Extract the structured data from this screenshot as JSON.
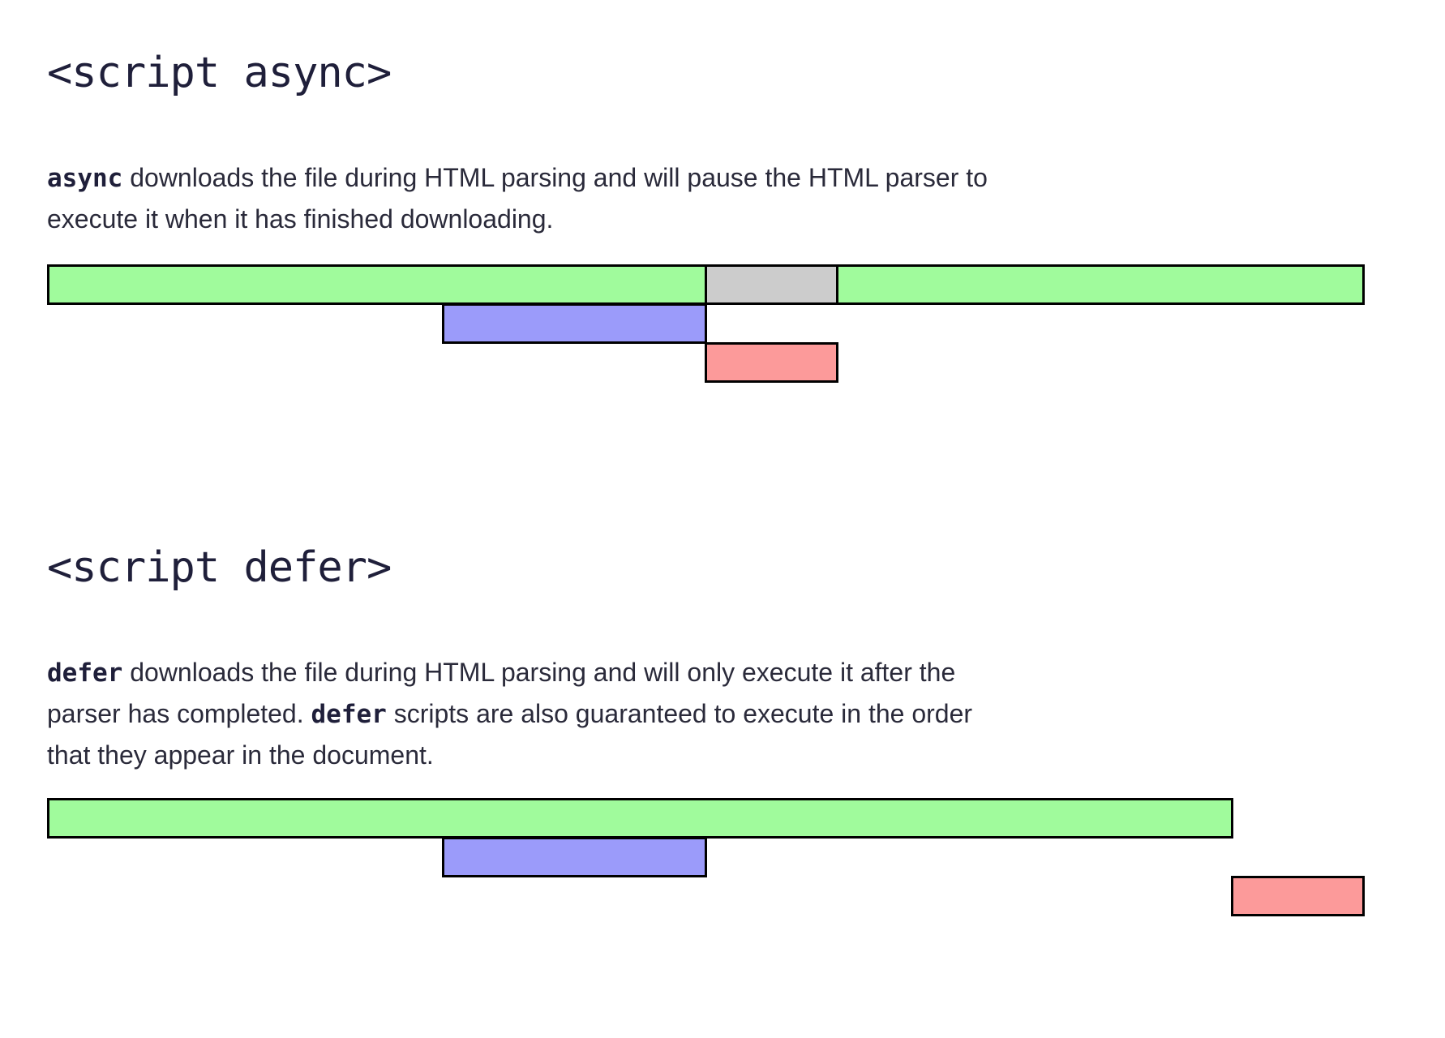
{
  "async": {
    "heading": "<script async>",
    "keyword": "async",
    "description_rest": " downloads the file during HTML parsing and will pause the HTML parser to execute it when it has finished downloading.",
    "timeline": {
      "parse_before_end": 0.5,
      "paused_end": 0.6,
      "fetch_start": 0.3,
      "fetch_end": 0.5,
      "execute_start": 0.5,
      "execute_end": 0.6
    }
  },
  "defer": {
    "heading": "<script defer>",
    "keyword": "defer",
    "description_part1": " downloads the file during HTML parsing and will only execute it after the parser has completed. ",
    "keyword2": "defer",
    "description_part2": " scripts are also guaranteed to execute in the order that they appear in the document.",
    "timeline": {
      "parse_end": 0.9,
      "fetch_start": 0.3,
      "fetch_end": 0.5,
      "execute_start": 0.9,
      "execute_end": 1.0
    }
  },
  "colors": {
    "html_parsing": "#a0fb9c",
    "parser_paused": "#cccccc",
    "script_download": "#9b9bfa",
    "script_execution": "#fc9a9a"
  }
}
